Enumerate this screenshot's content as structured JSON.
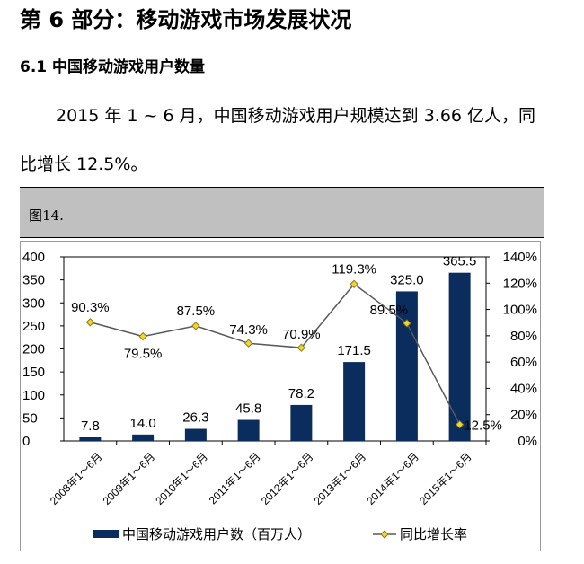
{
  "title": "第 6 部分：移动游戏市场发展状况",
  "subtitle": "6.1 中国移动游戏用户数量",
  "paragraph_line1": "2015 年 1 ~ 6 月，中国移动游戏用户规模达到 3.66 亿人，同",
  "paragraph_line2": "比增长 12.5%。",
  "figure_label": "图14.",
  "chart_data": {
    "type": "bar+line",
    "categories": [
      "2008年1～6月",
      "2009年1～6月",
      "2010年1～6月",
      "2011年1～6月",
      "2012年1～6月",
      "2013年1～6月",
      "2014年1～6月",
      "2015年1～6月"
    ],
    "series": [
      {
        "name": "中国移动游戏用户数（百万人）",
        "type": "bar",
        "axis": "left",
        "values": [
          7.8,
          14.0,
          26.3,
          45.8,
          78.2,
          171.5,
          325.0,
          365.5
        ],
        "labels": [
          "7.8",
          "14.0",
          "26.3",
          "45.8",
          "78.2",
          "171.5",
          "325.0",
          "365.5"
        ],
        "color": "#0b2d5e"
      },
      {
        "name": "同比增长率",
        "type": "line",
        "axis": "right",
        "values": [
          90.3,
          79.5,
          87.5,
          74.3,
          70.9,
          119.3,
          89.5,
          12.5
        ],
        "labels": [
          "90.3%",
          "79.5%",
          "87.5%",
          "74.3%",
          "70.9%",
          "119.3%",
          "89.5%",
          "12.5%"
        ],
        "color": "#595959",
        "marker_color": "#f2d43a"
      }
    ],
    "y_left": {
      "range": [
        0,
        400
      ],
      "ticks": [
        "0",
        "50",
        "100",
        "150",
        "200",
        "250",
        "300",
        "350",
        "400"
      ]
    },
    "y_right": {
      "range": [
        0,
        140
      ],
      "ticks": [
        "0%",
        "20%",
        "40%",
        "60%",
        "80%",
        "100%",
        "120%",
        "140%"
      ]
    },
    "legend_position": "bottom",
    "grid": false
  }
}
